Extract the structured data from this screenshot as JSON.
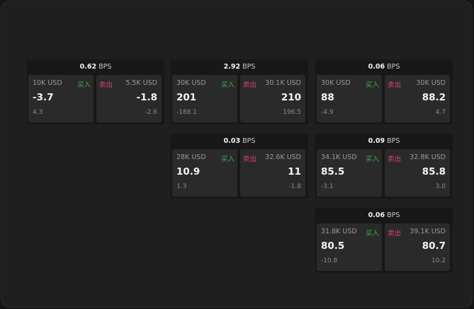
{
  "unit_label": "BPS",
  "buy_label": "买入",
  "sell_label": "卖出",
  "colors": {
    "buy": "#3cae5a",
    "sell": "#d9466b"
  },
  "panels": [
    {
      "spread": "0.62",
      "bid": {
        "size": "10K USD",
        "price": "-3.7",
        "change": "4.3"
      },
      "ask": {
        "size": "5.5K USD",
        "price": "-1.8",
        "change": "-2.6"
      }
    },
    {
      "spread": "2.92",
      "bid": {
        "size": "30K USD",
        "price": "201",
        "change": "-188.1"
      },
      "ask": {
        "size": "30.1K USD",
        "price": "210",
        "change": "196.5"
      }
    },
    {
      "spread": "0.06",
      "bid": {
        "size": "30K USD",
        "price": "88",
        "change": "-4.9"
      },
      "ask": {
        "size": "30K USD",
        "price": "88.2",
        "change": "4.7"
      }
    },
    {
      "spread": "0.03",
      "bid": {
        "size": "28K USD",
        "price": "10.9",
        "change": "1.3"
      },
      "ask": {
        "size": "32.6K USD",
        "price": "11",
        "change": "-1.8"
      }
    },
    {
      "spread": "0.09",
      "bid": {
        "size": "34.1K USD",
        "price": "85.5",
        "change": "-3.1"
      },
      "ask": {
        "size": "32.8K USD",
        "price": "85.8",
        "change": "3.0"
      }
    },
    {
      "spread": "0.06",
      "bid": {
        "size": "31.8K USD",
        "price": "80.5",
        "change": "-10.8"
      },
      "ask": {
        "size": "39.1K USD",
        "price": "80.7",
        "change": "10.2"
      }
    }
  ]
}
